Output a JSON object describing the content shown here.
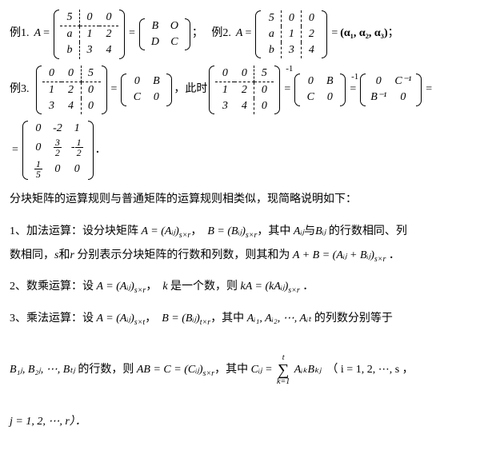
{
  "e1": {
    "label": "例1.",
    "A": "A",
    "B": "B",
    "O": "O",
    "D": "D",
    "C": "C",
    "m1": [
      [
        "5",
        "0",
        "0"
      ],
      [
        "a",
        "1",
        "2"
      ],
      [
        "b",
        "3",
        "4"
      ]
    ],
    "d1c": 0,
    "d1r": 0
  },
  "e2": {
    "label": "例2.",
    "A": "A",
    "r": "(α₁, α₂, α₃)",
    "m1": [
      [
        "5",
        "0",
        "0"
      ],
      [
        "a",
        "1",
        "2"
      ],
      [
        "b",
        "3",
        "4"
      ]
    ]
  },
  "e3": {
    "label": "例3.",
    "t": "，此时",
    "B": "B",
    "C": "C",
    "Ci": "C⁻¹",
    "Bi": "B⁻¹",
    "m1": [
      [
        "0",
        "0",
        "5"
      ],
      [
        "1",
        "2",
        "0"
      ],
      [
        "3",
        "4",
        "0"
      ]
    ],
    "r": [
      [
        "0",
        "-2",
        "1"
      ],
      [
        "0",
        "3/2",
        "-1/2"
      ],
      [
        "1/5",
        "0",
        "0"
      ]
    ]
  },
  "p0": "分块矩阵的运算规则与普通矩阵的运算规则相类似，现简略说明如下：",
  "p1a": "1、加法运算：设分块矩阵 ",
  "p1b": "，其中 ",
  "p1c": "与",
  "p1d": " 的行数相同、列",
  "p1e": "数相同，",
  "p1f": "和",
  "p1g": " 分别表示分块矩阵的行数和列数，则其和为 ",
  "p2a": "2、数乘运算：设 ",
  "p2b": "是一个数，则 ",
  "p3a": "3、乘法运算：设 ",
  "p3b": "，其中 ",
  "p3c": " 的列数分别等于",
  "p3d": " 的行数，则 ",
  "p3e": "，其中 ",
  "s": {
    "A": "A",
    "B": "B",
    "Aij": "Aᵢⱼ",
    "Bij": "Bᵢⱼ",
    "s": "s",
    "r": "r",
    "k": "k",
    "t": "t",
    "sxr": "s×r",
    "sxt": "s×t",
    "txr": "t×r",
    "eq1": "A = (Aᵢⱼ)",
    "eq2": "B = (Bᵢⱼ)",
    "eq3": "A + B = (Aᵢⱼ + Bᵢⱼ)",
    "eq4": "kA = (kAᵢⱼ)",
    "eq5": "AB = C = (Cᵢⱼ)",
    "seq": "Aᵢ₁, Aᵢ₂, ⋯, Aᵢₜ",
    "seqB": "B₁ⱼ, B₂ⱼ, ⋯, Bₜⱼ",
    "Cij": "Cᵢⱼ =",
    "term": "AᵢₖBₖⱼ",
    "idx": "（ i = 1, 2, ⋯, s ，",
    "j": "j = 1, 2, ⋯, r）．",
    "sumt": "t",
    "sumb": "k=1",
    "comma": "，",
    "per": " ．"
  }
}
